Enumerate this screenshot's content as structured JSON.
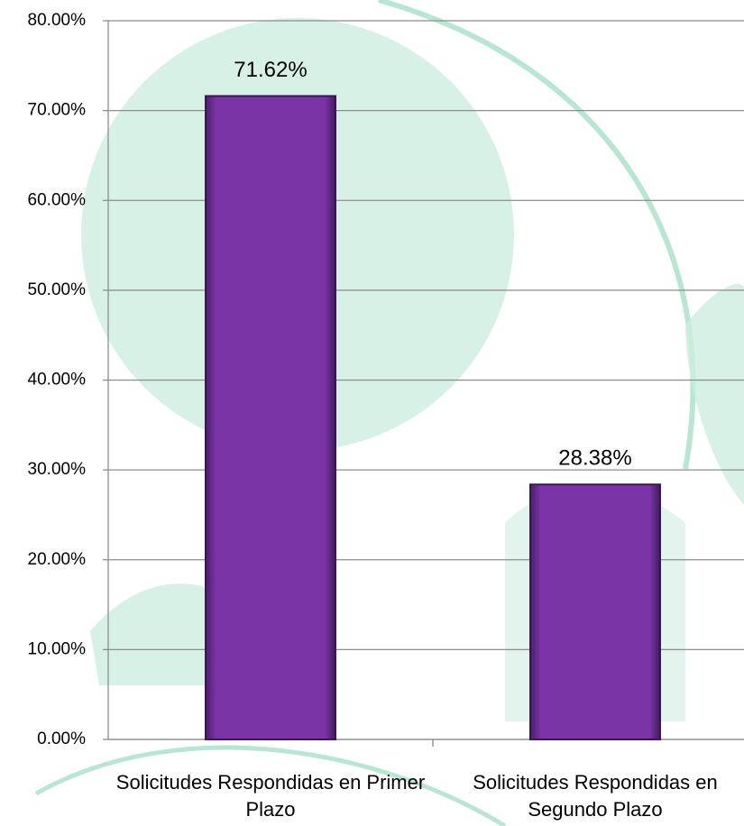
{
  "chart_data": {
    "type": "bar",
    "categories": [
      "Solicitudes Respondidas en Primer Plazo",
      "Solicitudes Respondidas en Segundo Plazo"
    ],
    "values": [
      71.62,
      28.38
    ],
    "value_labels": [
      "71.62%",
      "28.38%"
    ],
    "color": "#7b34a8",
    "ylim": [
      0,
      80
    ],
    "yticks": [
      {
        "value": 0,
        "label": "0.00%"
      },
      {
        "value": 10,
        "label": "10.00%"
      },
      {
        "value": 20,
        "label": "20.00%"
      },
      {
        "value": 30,
        "label": "30.00%"
      },
      {
        "value": 40,
        "label": "40.00%"
      },
      {
        "value": 50,
        "label": "50.00%"
      },
      {
        "value": 60,
        "label": "60.00%"
      },
      {
        "value": 70,
        "label": "70.00%"
      },
      {
        "value": 80,
        "label": "80.00%"
      }
    ],
    "grid": true
  }
}
